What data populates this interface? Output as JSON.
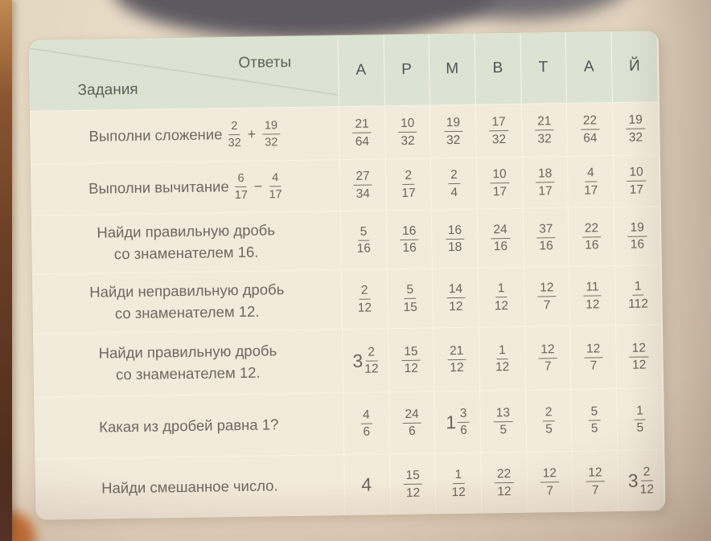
{
  "palette": {
    "page_cream": "#ecdfca",
    "desk_brown": "#6b3f26",
    "header_green": "#dde3d2",
    "cell_cream": "#f2ebdb",
    "grid_line": "#f8f4e8",
    "task_text": "#6e6861",
    "fraction_text": "#6b655e",
    "letter_text": "#4d5355"
  },
  "table": {
    "answers_label": "Ответы",
    "tasks_label": "Задания",
    "letters": [
      "А",
      "Р",
      "М",
      "В",
      "Т",
      "А",
      "Й"
    ],
    "rows": [
      {
        "task": {
          "text": "Выполни сложение",
          "expr": {
            "f1": {
              "n": "2",
              "d": "32"
            },
            "op": "+",
            "f2": {
              "n": "19",
              "d": "32"
            }
          }
        },
        "answers": [
          {
            "n": "21",
            "d": "64"
          },
          {
            "n": "10",
            "d": "32"
          },
          {
            "n": "19",
            "d": "32"
          },
          {
            "n": "17",
            "d": "32"
          },
          {
            "n": "21",
            "d": "32"
          },
          {
            "n": "22",
            "d": "64"
          },
          {
            "n": "19",
            "d": "32"
          }
        ]
      },
      {
        "task": {
          "text": "Выполни вычитание",
          "expr": {
            "f1": {
              "n": "6",
              "d": "17"
            },
            "op": "−",
            "f2": {
              "n": "4",
              "d": "17"
            }
          }
        },
        "answers": [
          {
            "n": "27",
            "d": "34"
          },
          {
            "n": "2",
            "d": "17"
          },
          {
            "n": "2",
            "d": "4"
          },
          {
            "n": "10",
            "d": "17"
          },
          {
            "n": "18",
            "d": "17"
          },
          {
            "n": "4",
            "d": "17"
          },
          {
            "n": "10",
            "d": "17"
          }
        ]
      },
      {
        "task": {
          "text": "Найди правильную дробь",
          "text2": "со знаменателем 16."
        },
        "answers": [
          {
            "n": "5",
            "d": "16"
          },
          {
            "n": "16",
            "d": "16"
          },
          {
            "n": "16",
            "d": "18"
          },
          {
            "n": "24",
            "d": "16"
          },
          {
            "n": "37",
            "d": "16"
          },
          {
            "n": "22",
            "d": "16"
          },
          {
            "n": "19",
            "d": "16"
          }
        ]
      },
      {
        "task": {
          "text": "Найди неправильную дробь",
          "text2": "со знаменателем 12."
        },
        "answers": [
          {
            "n": "2",
            "d": "12"
          },
          {
            "n": "5",
            "d": "15"
          },
          {
            "n": "14",
            "d": "12"
          },
          {
            "n": "1",
            "d": "12"
          },
          {
            "n": "12",
            "d": "7"
          },
          {
            "n": "11",
            "d": "12"
          },
          {
            "n": "1",
            "d": "112"
          }
        ]
      },
      {
        "task": {
          "text": "Найди правильную дробь",
          "text2": "со знаменателем 12."
        },
        "answers": [
          {
            "w": "3",
            "n": "2",
            "d": "12"
          },
          {
            "n": "15",
            "d": "12"
          },
          {
            "n": "21",
            "d": "12"
          },
          {
            "n": "1",
            "d": "12"
          },
          {
            "n": "12",
            "d": "7"
          },
          {
            "n": "12",
            "d": "7"
          },
          {
            "n": "12",
            "d": "12"
          }
        ]
      },
      {
        "task": {
          "text": "Какая из дробей равна 1?"
        },
        "answers": [
          {
            "n": "4",
            "d": "6"
          },
          {
            "n": "24",
            "d": "6"
          },
          {
            "w": "1",
            "n": "3",
            "d": "6"
          },
          {
            "n": "13",
            "d": "5"
          },
          {
            "n": "2",
            "d": "5"
          },
          {
            "n": "5",
            "d": "5"
          },
          {
            "n": "1",
            "d": "5"
          }
        ]
      },
      {
        "task": {
          "text": "Найди смешанное число."
        },
        "answers": [
          {
            "w": "4"
          },
          {
            "n": "15",
            "d": "12"
          },
          {
            "n": "1",
            "d": "12"
          },
          {
            "n": "22",
            "d": "12"
          },
          {
            "n": "12",
            "d": "7"
          },
          {
            "n": "12",
            "d": "7"
          },
          {
            "w": "3",
            "n": "2",
            "d": "12"
          }
        ]
      }
    ]
  }
}
